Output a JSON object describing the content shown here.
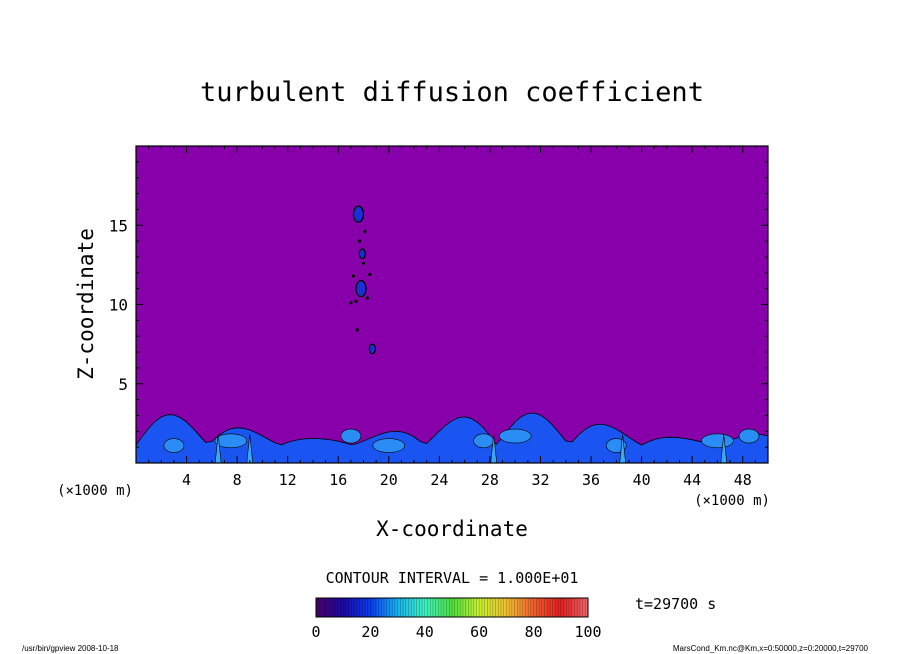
{
  "chart_data": {
    "type": "heatmap",
    "title": "turbulent diffusion coefficient",
    "xlabel": "X-coordinate",
    "ylabel": "Z-coordinate",
    "x_unit_left": "(×1000 m)",
    "x_unit_right": "(×1000 m)",
    "xlim": [
      0,
      50
    ],
    "ylim": [
      0,
      20
    ],
    "x_ticks": [
      4,
      8,
      12,
      16,
      20,
      24,
      28,
      32,
      36,
      40,
      44,
      48
    ],
    "y_ticks": [
      5,
      10,
      15
    ],
    "background_value": 0,
    "features": [
      {
        "kind": "near-surface turbulent layer",
        "z_top": 3.2,
        "value_range": [
          0,
          30
        ]
      },
      {
        "kind": "isolated patches",
        "x": 17.8,
        "z": 11.0,
        "value": 20
      },
      {
        "kind": "isolated patches",
        "x": 17.6,
        "z": 15.7,
        "value": 20
      },
      {
        "kind": "isolated patches",
        "x": 17.9,
        "z": 13.2,
        "value": 10
      },
      {
        "kind": "isolated patches",
        "x": 18.7,
        "z": 7.2,
        "value": 10
      }
    ],
    "contour_interval_label": "CONTOUR INTERVAL = 1.000E+01",
    "time_label": "t=29700 s",
    "colorbar": {
      "min": 0,
      "max": 100,
      "ticks": [
        0,
        20,
        40,
        60,
        80,
        100
      ],
      "colors": [
        "#4a0066",
        "#1a0aa6",
        "#0a3cf0",
        "#18b4f0",
        "#40f0c0",
        "#50e040",
        "#c8f030",
        "#f0c030",
        "#f06030",
        "#e02020",
        "#f06868"
      ]
    },
    "field_color": "#8800aa",
    "surface_color": "#1a55f2"
  },
  "footer": {
    "left": "/usr/bin/gpview   2008-10-18",
    "right": "MarsCond_Km.nc@Km,x=0:50000,z=0:20000,t=29700"
  }
}
